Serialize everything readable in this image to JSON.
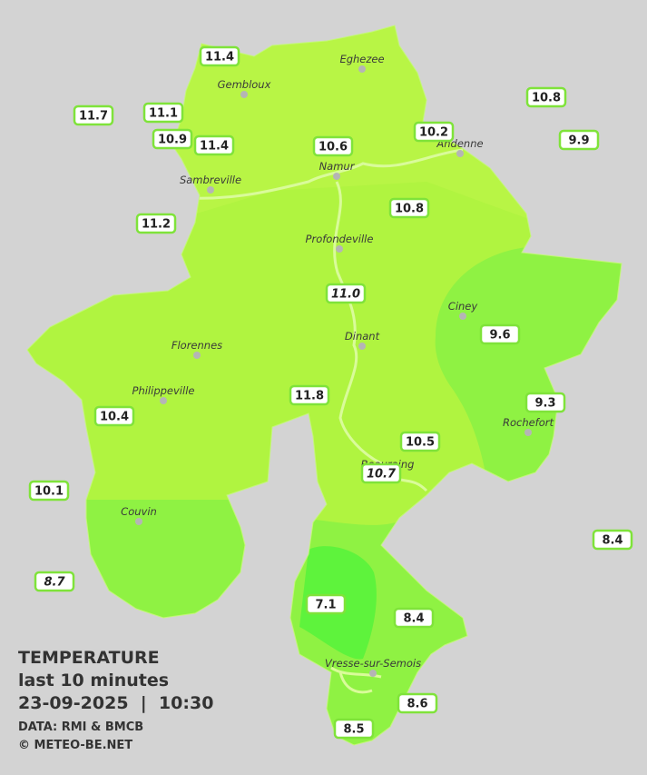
{
  "legend": {
    "title": "TEMPERATURE",
    "subtitle": "last 10 minutes",
    "datetime": "23-09-2025  |  10:30",
    "source": "DATA: RMI & BMCB",
    "copyright": "© METEO-BE.NET"
  },
  "towns": [
    {
      "name": "Eghezee"
    },
    {
      "name": "Gembloux"
    },
    {
      "name": "Andenne"
    },
    {
      "name": "Namur"
    },
    {
      "name": "Sambreville"
    },
    {
      "name": "Profondeville"
    },
    {
      "name": "Ciney"
    },
    {
      "name": "Dinant"
    },
    {
      "name": "Florennes"
    },
    {
      "name": "Philippeville"
    },
    {
      "name": "Rochefort"
    },
    {
      "name": "Beauraing"
    },
    {
      "name": "Couvin"
    },
    {
      "name": "Vresse-sur-Semois"
    }
  ],
  "stations": [
    {
      "value": "11.4"
    },
    {
      "value": "11.7"
    },
    {
      "value": "11.1"
    },
    {
      "value": "10.9"
    },
    {
      "value": "11.4"
    },
    {
      "value": "10.6"
    },
    {
      "value": "10.2"
    },
    {
      "value": "10.8"
    },
    {
      "value": "9.9"
    },
    {
      "value": "11.2"
    },
    {
      "value": "10.8"
    },
    {
      "value": "11.0",
      "italic": true
    },
    {
      "value": "9.6"
    },
    {
      "value": "11.8"
    },
    {
      "value": "9.3"
    },
    {
      "value": "10.4"
    },
    {
      "value": "10.5"
    },
    {
      "value": "10.7",
      "italic": true
    },
    {
      "value": "10.1"
    },
    {
      "value": "8.4"
    },
    {
      "value": "8.7",
      "italic": true
    },
    {
      "value": "7.1"
    },
    {
      "value": "8.4"
    },
    {
      "value": "8.6"
    },
    {
      "value": "8.5"
    }
  ]
}
